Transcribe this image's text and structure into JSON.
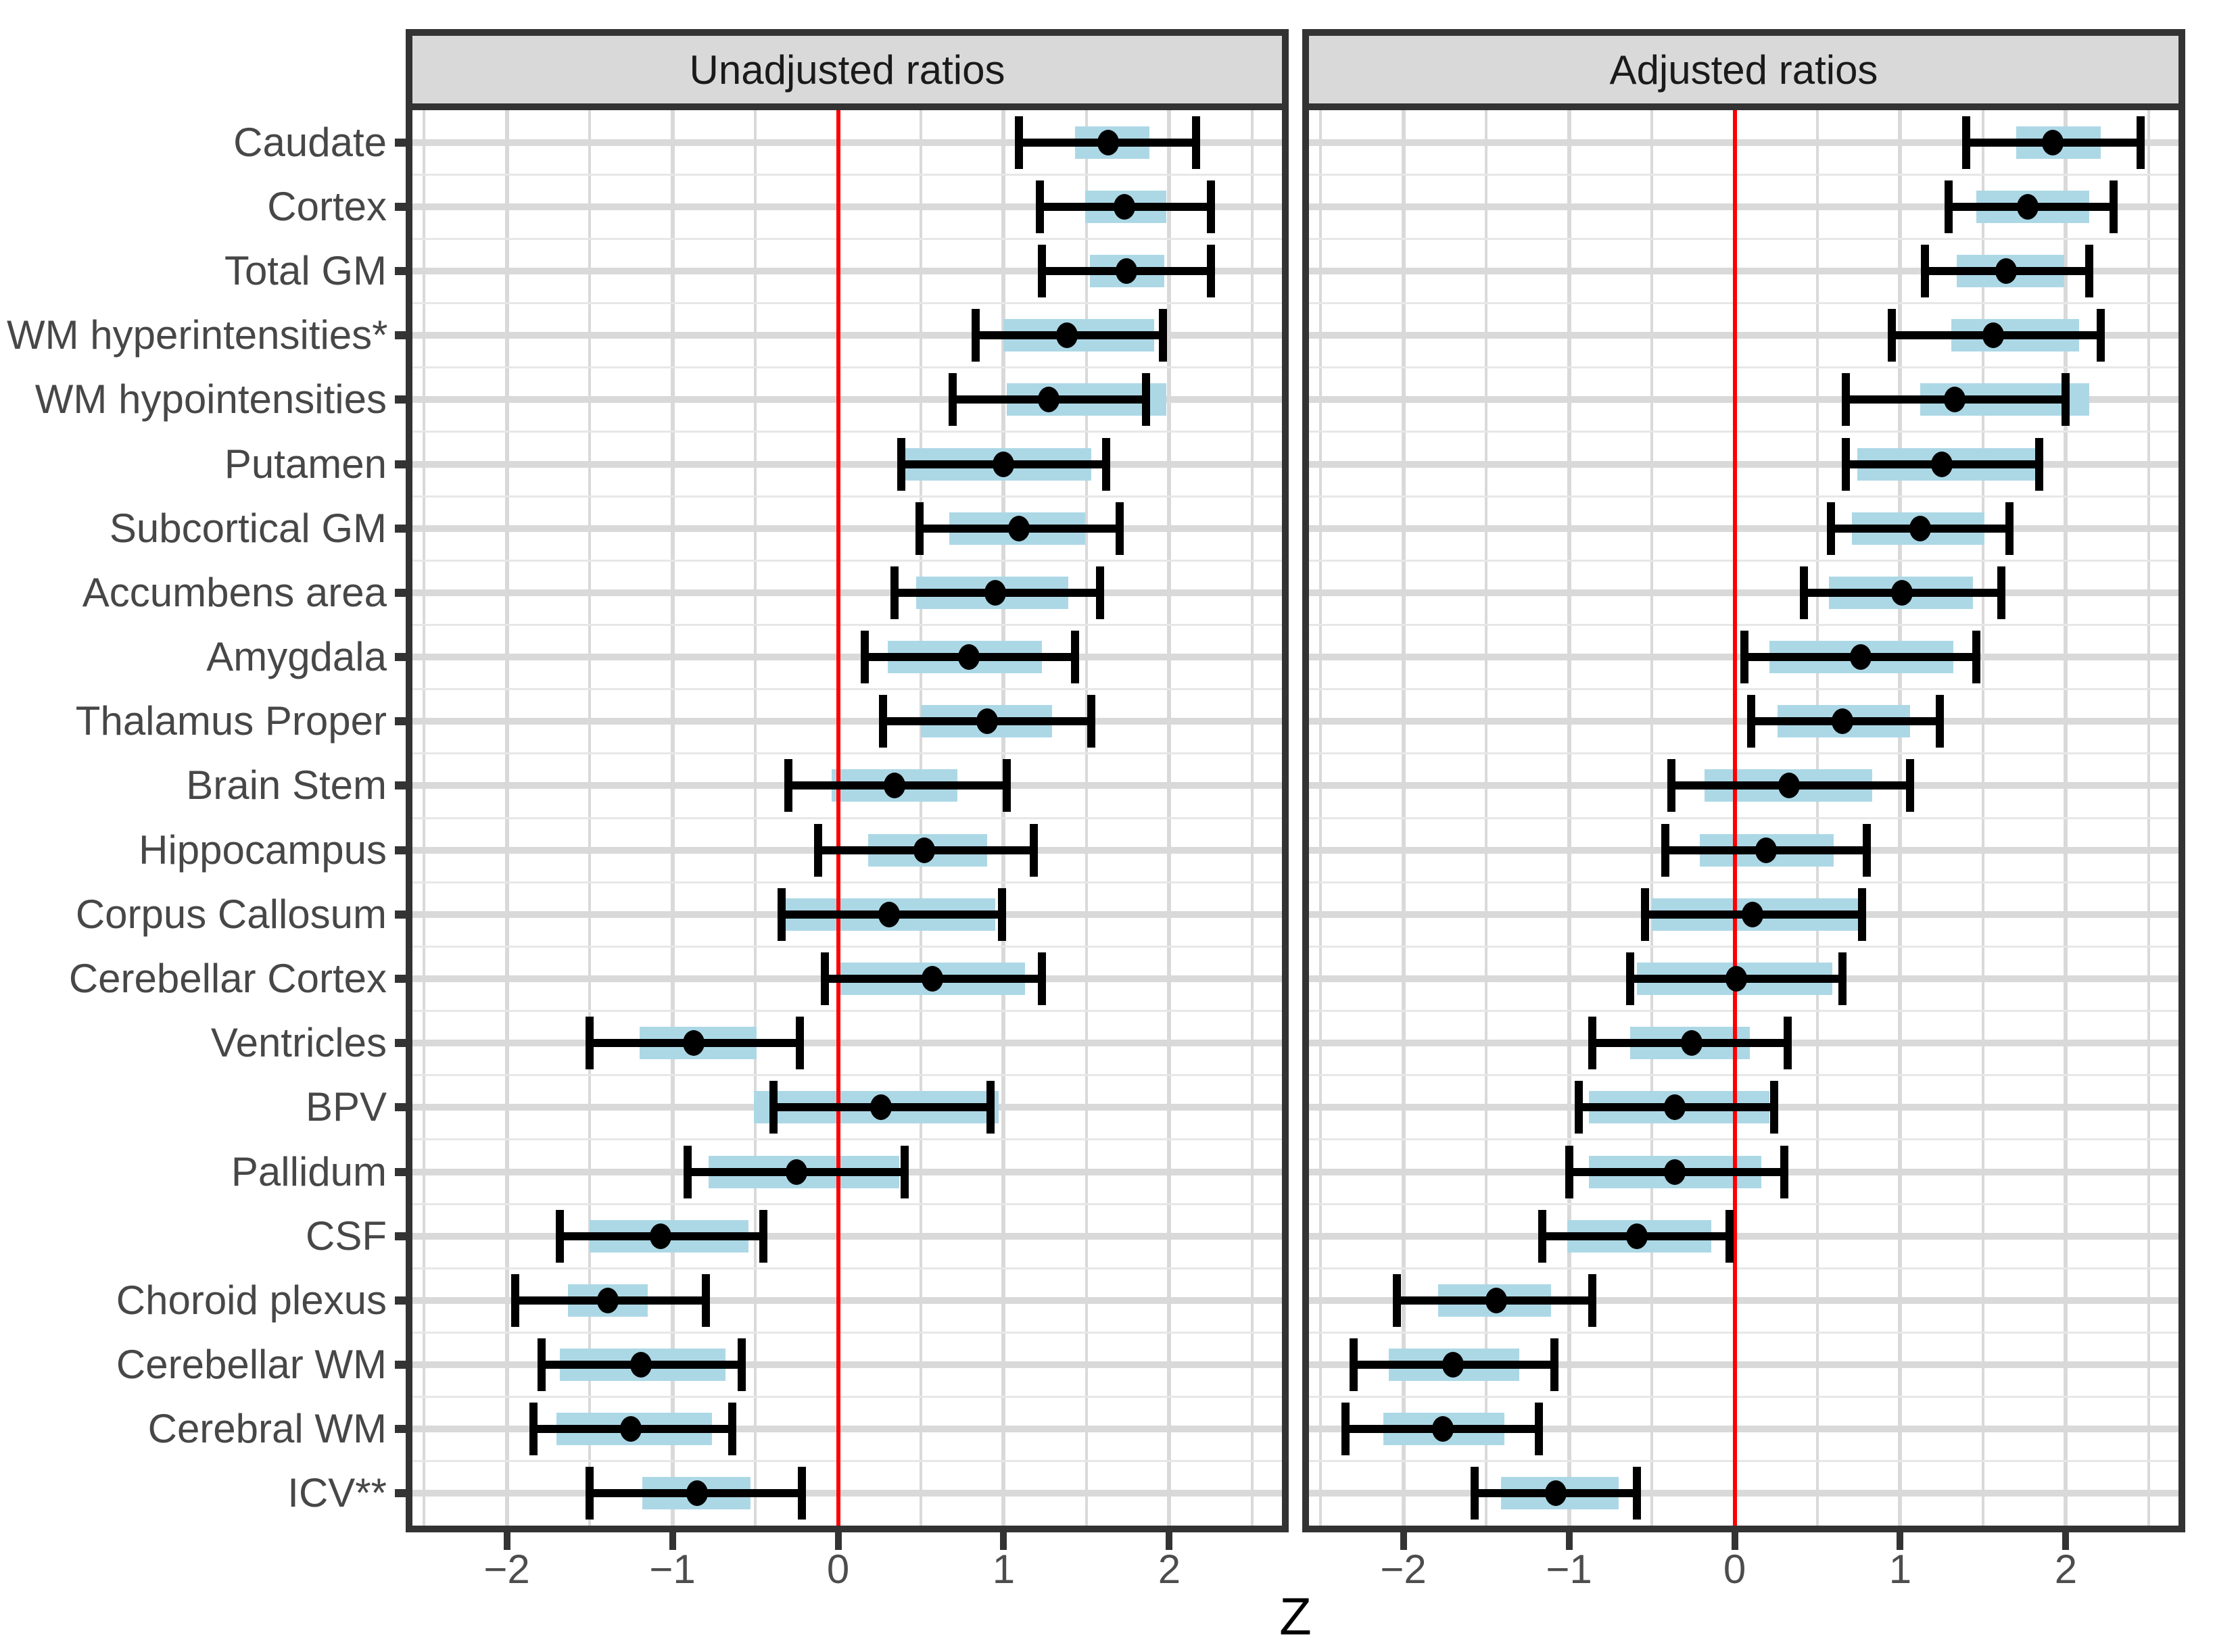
{
  "chart_data": {
    "type": "forest-dot-ci",
    "title": "",
    "xlabel": "Z",
    "x_range": [
      -2.57,
      2.68
    ],
    "x_ticks": [
      -2,
      -1,
      0,
      1,
      2
    ],
    "x_tick_labels": [
      "−2",
      "−1",
      "0",
      "1",
      "2"
    ],
    "minor_step": 0.5,
    "zero_line": 0,
    "grid": true,
    "legend_position": "none",
    "facets": [
      "Unadjusted ratios",
      "Adjusted ratios"
    ],
    "categories": [
      "Caudate",
      "Cortex",
      "Total GM",
      "WM hyperintensities*",
      "WM hypointensities",
      "Putamen",
      "Subcortical GM",
      "Accumbens area",
      "Amygdala",
      "Thalamus Proper",
      "Brain Stem",
      "Hippocampus",
      "Corpus Callosum",
      "Cerebellar Cortex",
      "Ventricles",
      "BPV",
      "Pallidum",
      "CSF",
      "Choroid plexus",
      "Cerebellar WM",
      "Cerebral WM",
      "ICV**"
    ],
    "series": [
      {
        "name": "Unadjusted ratios",
        "points": [
          {
            "lo": 1.09,
            "q1": 1.43,
            "mid": 1.63,
            "q3": 1.88,
            "hi": 2.16
          },
          {
            "lo": 1.22,
            "q1": 1.49,
            "mid": 1.73,
            "q3": 1.98,
            "hi": 2.25
          },
          {
            "lo": 1.23,
            "q1": 1.52,
            "mid": 1.74,
            "q3": 1.97,
            "hi": 2.25
          },
          {
            "lo": 0.83,
            "q1": 1.0,
            "mid": 1.38,
            "q3": 1.91,
            "hi": 1.96
          },
          {
            "lo": 0.69,
            "q1": 1.02,
            "mid": 1.27,
            "q3": 1.98,
            "hi": 1.86
          },
          {
            "lo": 0.38,
            "q1": 0.39,
            "mid": 1.0,
            "q3": 1.53,
            "hi": 1.62
          },
          {
            "lo": 0.49,
            "q1": 0.67,
            "mid": 1.09,
            "q3": 1.49,
            "hi": 1.7
          },
          {
            "lo": 0.34,
            "q1": 0.47,
            "mid": 0.95,
            "q3": 1.39,
            "hi": 1.58
          },
          {
            "lo": 0.16,
            "q1": 0.3,
            "mid": 0.79,
            "q3": 1.23,
            "hi": 1.43
          },
          {
            "lo": 0.27,
            "q1": 0.5,
            "mid": 0.9,
            "q3": 1.29,
            "hi": 1.53
          },
          {
            "lo": -0.3,
            "q1": -0.04,
            "mid": 0.34,
            "q3": 0.72,
            "hi": 1.02
          },
          {
            "lo": -0.12,
            "q1": 0.18,
            "mid": 0.52,
            "q3": 0.9,
            "hi": 1.18
          },
          {
            "lo": -0.34,
            "q1": -0.33,
            "mid": 0.31,
            "q3": 0.95,
            "hi": 0.99
          },
          {
            "lo": -0.08,
            "q1": -0.01,
            "mid": 0.57,
            "q3": 1.13,
            "hi": 1.23
          },
          {
            "lo": -1.5,
            "q1": -1.2,
            "mid": -0.87,
            "q3": -0.49,
            "hi": -0.23
          },
          {
            "lo": -0.39,
            "q1": -0.51,
            "mid": 0.26,
            "q3": 0.97,
            "hi": 0.92
          },
          {
            "lo": -0.91,
            "q1": -0.78,
            "mid": -0.25,
            "q3": 0.37,
            "hi": 0.4
          },
          {
            "lo": -1.68,
            "q1": -1.5,
            "mid": -1.07,
            "q3": -0.54,
            "hi": -0.45
          },
          {
            "lo": -1.95,
            "q1": -1.63,
            "mid": -1.39,
            "q3": -1.15,
            "hi": -0.8
          },
          {
            "lo": -1.79,
            "q1": -1.68,
            "mid": -1.19,
            "q3": -0.68,
            "hi": -0.58
          },
          {
            "lo": -1.84,
            "q1": -1.7,
            "mid": -1.25,
            "q3": -0.76,
            "hi": -0.64
          },
          {
            "lo": -1.5,
            "q1": -1.18,
            "mid": -0.85,
            "q3": -0.53,
            "hi": -0.22
          }
        ]
      },
      {
        "name": "Adjusted ratios",
        "points": [
          {
            "lo": 1.4,
            "q1": 1.7,
            "mid": 1.92,
            "q3": 2.21,
            "hi": 2.45
          },
          {
            "lo": 1.29,
            "q1": 1.46,
            "mid": 1.77,
            "q3": 2.14,
            "hi": 2.29
          },
          {
            "lo": 1.15,
            "q1": 1.34,
            "mid": 1.64,
            "q3": 1.99,
            "hi": 2.14
          },
          {
            "lo": 0.95,
            "q1": 1.31,
            "mid": 1.56,
            "q3": 2.08,
            "hi": 2.21
          },
          {
            "lo": 0.67,
            "q1": 1.12,
            "mid": 1.33,
            "q3": 2.14,
            "hi": 2.0
          },
          {
            "lo": 0.67,
            "q1": 0.74,
            "mid": 1.25,
            "q3": 1.82,
            "hi": 1.84
          },
          {
            "lo": 0.58,
            "q1": 0.71,
            "mid": 1.12,
            "q3": 1.51,
            "hi": 1.66
          },
          {
            "lo": 0.42,
            "q1": 0.57,
            "mid": 1.01,
            "q3": 1.44,
            "hi": 1.61
          },
          {
            "lo": 0.06,
            "q1": 0.21,
            "mid": 0.76,
            "q3": 1.32,
            "hi": 1.46
          },
          {
            "lo": 0.1,
            "q1": 0.26,
            "mid": 0.65,
            "q3": 1.06,
            "hi": 1.24
          },
          {
            "lo": -0.38,
            "q1": -0.18,
            "mid": 0.33,
            "q3": 0.83,
            "hi": 1.06
          },
          {
            "lo": -0.42,
            "q1": -0.21,
            "mid": 0.19,
            "q3": 0.6,
            "hi": 0.8
          },
          {
            "lo": -0.54,
            "q1": -0.5,
            "mid": 0.11,
            "q3": 0.75,
            "hi": 0.77
          },
          {
            "lo": -0.63,
            "q1": -0.59,
            "mid": 0.01,
            "q3": 0.59,
            "hi": 0.65
          },
          {
            "lo": -0.86,
            "q1": -0.63,
            "mid": -0.26,
            "q3": 0.09,
            "hi": 0.32
          },
          {
            "lo": -0.94,
            "q1": -0.88,
            "mid": -0.36,
            "q3": 0.21,
            "hi": 0.24
          },
          {
            "lo": -1.0,
            "q1": -0.88,
            "mid": -0.36,
            "q3": 0.16,
            "hi": 0.3
          },
          {
            "lo": -1.16,
            "q1": -1.01,
            "mid": -0.59,
            "q3": -0.14,
            "hi": -0.03
          },
          {
            "lo": -2.04,
            "q1": -1.79,
            "mid": -1.44,
            "q3": -1.11,
            "hi": -0.86
          },
          {
            "lo": -2.3,
            "q1": -2.09,
            "mid": -1.7,
            "q3": -1.3,
            "hi": -1.09
          },
          {
            "lo": -2.35,
            "q1": -2.12,
            "mid": -1.76,
            "q3": -1.39,
            "hi": -1.18
          },
          {
            "lo": -1.57,
            "q1": -1.41,
            "mid": -1.08,
            "q3": -0.7,
            "hi": -0.59
          }
        ]
      }
    ],
    "colors": {
      "box_fill": "#acd8e6",
      "marker": "#000000",
      "zero_line": "#ff0000",
      "grid": "#d9d9d9",
      "strip_background": "#d9d9d9",
      "panel_border": "#333333",
      "axis_text": "#4d4d4d",
      "label_text": "#474747"
    }
  }
}
